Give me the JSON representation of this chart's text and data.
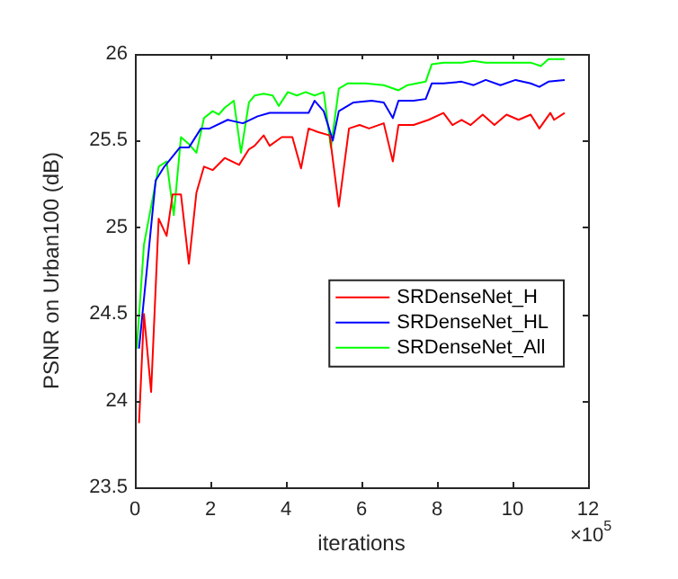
{
  "chart_data": {
    "type": "line",
    "xlabel": "iterations",
    "ylabel": "PSNR on Urban100 (dB)",
    "annotations": [
      "×10$^{5}$"
    ],
    "xlim": [
      0,
      12
    ],
    "xticks": [
      0,
      2,
      4,
      6,
      8,
      10,
      12
    ],
    "ylim": [
      23.5,
      26
    ],
    "yticks": [
      23.5,
      24,
      24.5,
      25,
      25.5,
      26
    ],
    "grid": false,
    "legend": "right",
    "marker": "none",
    "line_style": "solid",
    "series": [
      {
        "name": "SRDenseNet_H",
        "color": "#ff0000",
        "x": [
          0.11,
          0.24,
          0.43,
          0.63,
          0.84,
          1.0,
          1.22,
          1.43,
          1.63,
          1.83,
          2.06,
          2.38,
          2.76,
          3.02,
          3.17,
          3.41,
          3.57,
          3.89,
          4.17,
          4.4,
          4.6,
          4.84,
          5.16,
          5.4,
          5.67,
          5.95,
          6.2,
          6.59,
          6.83,
          6.98,
          7.38,
          7.78,
          8.17,
          8.41,
          8.65,
          8.89,
          9.21,
          9.52,
          9.84,
          10.16,
          10.48,
          10.71,
          11.0,
          11.1,
          11.38
        ],
        "values": [
          23.87,
          24.5,
          24.05,
          25.05,
          24.95,
          25.19,
          25.19,
          24.79,
          25.2,
          25.35,
          25.33,
          25.4,
          25.36,
          25.45,
          25.47,
          25.53,
          25.47,
          25.52,
          25.52,
          25.34,
          25.57,
          25.55,
          25.53,
          25.12,
          25.57,
          25.59,
          25.57,
          25.6,
          25.38,
          25.59,
          25.59,
          25.62,
          25.66,
          25.59,
          25.62,
          25.59,
          25.65,
          25.59,
          25.65,
          25.62,
          25.65,
          25.57,
          25.66,
          25.62,
          25.66
        ]
      },
      {
        "name": "SRDenseNet_HL",
        "color": "#0000ff",
        "x": [
          0.11,
          0.55,
          0.78,
          1.19,
          1.43,
          1.75,
          1.98,
          2.46,
          2.86,
          3.25,
          3.57,
          4.21,
          4.6,
          4.76,
          5.0,
          5.24,
          5.4,
          5.79,
          6.27,
          6.59,
          6.83,
          6.98,
          7.38,
          7.7,
          7.86,
          8.17,
          8.65,
          8.97,
          9.29,
          9.68,
          10.08,
          10.48,
          10.71,
          10.95,
          11.38
        ],
        "values": [
          24.3,
          25.27,
          25.35,
          25.46,
          25.46,
          25.57,
          25.57,
          25.62,
          25.6,
          25.64,
          25.66,
          25.66,
          25.66,
          25.73,
          25.67,
          25.5,
          25.67,
          25.72,
          25.73,
          25.72,
          25.63,
          25.73,
          25.73,
          25.74,
          25.83,
          25.83,
          25.84,
          25.82,
          25.85,
          25.82,
          25.85,
          25.83,
          25.81,
          25.84,
          25.85
        ]
      },
      {
        "name": "SRDenseNet_All",
        "color": "#00ff00",
        "x": [
          0.05,
          0.24,
          0.63,
          0.84,
          1.03,
          1.22,
          1.43,
          1.63,
          1.83,
          2.06,
          2.22,
          2.38,
          2.62,
          2.81,
          3.02,
          3.17,
          3.41,
          3.65,
          3.81,
          4.05,
          4.29,
          4.52,
          4.76,
          5.0,
          5.19,
          5.4,
          5.63,
          6.1,
          6.59,
          6.98,
          7.22,
          7.7,
          7.86,
          8.17,
          8.65,
          8.97,
          9.29,
          9.76,
          10.08,
          10.48,
          10.75,
          10.95,
          11.38
        ],
        "values": [
          24.3,
          24.9,
          25.35,
          25.38,
          25.07,
          25.52,
          25.48,
          25.43,
          25.63,
          25.67,
          25.65,
          25.69,
          25.73,
          25.43,
          25.72,
          25.76,
          25.77,
          25.76,
          25.7,
          25.78,
          25.76,
          25.78,
          25.76,
          25.78,
          25.46,
          25.8,
          25.83,
          25.83,
          25.82,
          25.79,
          25.82,
          25.84,
          25.94,
          25.95,
          25.95,
          25.96,
          25.95,
          25.95,
          25.95,
          25.95,
          25.93,
          25.97,
          25.97
        ]
      }
    ]
  }
}
